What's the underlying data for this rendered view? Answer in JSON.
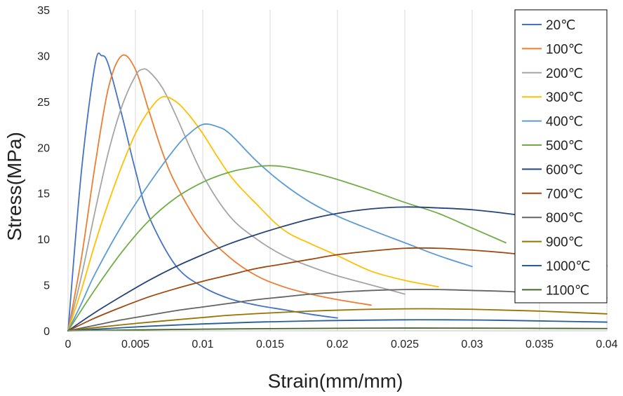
{
  "chart_data": {
    "type": "line",
    "title": "",
    "xlabel": "Strain(mm/mm)",
    "ylabel": "Stress(MPa)",
    "xlim": [
      0,
      0.04
    ],
    "ylim": [
      0,
      35
    ],
    "x_ticks": [
      0,
      0.005,
      0.01,
      0.015,
      0.02,
      0.025,
      0.03,
      0.035,
      0.04
    ],
    "x_tick_labels": [
      "0",
      "0.005",
      "0.01",
      "0.015",
      "0.02",
      "0.025",
      "0.03",
      "0.035",
      "0.04"
    ],
    "y_ticks": [
      0,
      5,
      10,
      15,
      20,
      25,
      30,
      35
    ],
    "y_tick_labels": [
      "0",
      "5",
      "10",
      "15",
      "20",
      "25",
      "30",
      "35"
    ],
    "grid": "vertical",
    "legend_position": "top-right",
    "series": [
      {
        "name": "20℃",
        "color": "#4472C4",
        "peak_strain": 0.0025,
        "peak_stress": 30.0,
        "points": [
          [
            0,
            0
          ],
          [
            0.001,
            17.5
          ],
          [
            0.002,
            29
          ],
          [
            0.0025,
            30
          ],
          [
            0.003,
            29
          ],
          [
            0.004,
            23.5
          ],
          [
            0.005,
            17.5
          ],
          [
            0.006,
            12.5
          ],
          [
            0.008,
            7.1
          ],
          [
            0.01,
            4.8
          ],
          [
            0.012,
            3.5
          ],
          [
            0.014,
            2.8
          ],
          [
            0.016,
            2.3
          ],
          [
            0.018,
            1.8
          ],
          [
            0.02,
            1.4
          ]
        ]
      },
      {
        "name": "100℃",
        "color": "#ED7D31",
        "peak_strain": 0.004,
        "peak_stress": 30.0,
        "points": [
          [
            0,
            0
          ],
          [
            0.001,
            8
          ],
          [
            0.002,
            18
          ],
          [
            0.003,
            26.5
          ],
          [
            0.004,
            30
          ],
          [
            0.005,
            28.5
          ],
          [
            0.006,
            24
          ],
          [
            0.007,
            19.5
          ],
          [
            0.008,
            16
          ],
          [
            0.01,
            11
          ],
          [
            0.012,
            8
          ],
          [
            0.014,
            6
          ],
          [
            0.016,
            4.8
          ],
          [
            0.018,
            4
          ],
          [
            0.02,
            3.4
          ],
          [
            0.0225,
            2.8
          ]
        ]
      },
      {
        "name": "200℃",
        "color": "#A5A5A5",
        "peak_strain": 0.0055,
        "peak_stress": 28.5,
        "points": [
          [
            0,
            0
          ],
          [
            0.001,
            6
          ],
          [
            0.002,
            13
          ],
          [
            0.003,
            19.5
          ],
          [
            0.004,
            24.5
          ],
          [
            0.005,
            27.8
          ],
          [
            0.0055,
            28.5
          ],
          [
            0.006,
            28.3
          ],
          [
            0.007,
            26.5
          ],
          [
            0.008,
            23.5
          ],
          [
            0.01,
            17
          ],
          [
            0.012,
            12.5
          ],
          [
            0.014,
            10
          ],
          [
            0.016,
            8.2
          ],
          [
            0.018,
            7
          ],
          [
            0.02,
            6
          ],
          [
            0.0225,
            5
          ],
          [
            0.025,
            4
          ]
        ]
      },
      {
        "name": "300℃",
        "color": "#FFC000",
        "peak_strain": 0.007,
        "peak_stress": 25.5,
        "points": [
          [
            0,
            0
          ],
          [
            0.001,
            4.5
          ],
          [
            0.002,
            9.5
          ],
          [
            0.003,
            14
          ],
          [
            0.004,
            18
          ],
          [
            0.005,
            21.5
          ],
          [
            0.006,
            24
          ],
          [
            0.007,
            25.5
          ],
          [
            0.008,
            25
          ],
          [
            0.009,
            23.5
          ],
          [
            0.01,
            21.5
          ],
          [
            0.012,
            17
          ],
          [
            0.014,
            13.8
          ],
          [
            0.016,
            11
          ],
          [
            0.018,
            9.5
          ],
          [
            0.02,
            8.2
          ],
          [
            0.0225,
            6.5
          ],
          [
            0.025,
            5.5
          ],
          [
            0.0275,
            4.8
          ]
        ]
      },
      {
        "name": "400℃",
        "color": "#5B9BD5",
        "peak_strain": 0.01,
        "peak_stress": 22.5,
        "points": [
          [
            0,
            0
          ],
          [
            0.001,
            3
          ],
          [
            0.002,
            6.2
          ],
          [
            0.004,
            11.5
          ],
          [
            0.006,
            16
          ],
          [
            0.008,
            20
          ],
          [
            0.009,
            21.5
          ],
          [
            0.01,
            22.5
          ],
          [
            0.011,
            22.3
          ],
          [
            0.012,
            21.5
          ],
          [
            0.014,
            18.5
          ],
          [
            0.016,
            16
          ],
          [
            0.018,
            14
          ],
          [
            0.02,
            12.5
          ],
          [
            0.0225,
            11
          ],
          [
            0.025,
            9.6
          ],
          [
            0.0275,
            8.2
          ],
          [
            0.03,
            7
          ]
        ]
      },
      {
        "name": "500℃",
        "color": "#70AD47",
        "peak_strain": 0.015,
        "peak_stress": 18.0,
        "points": [
          [
            0,
            0
          ],
          [
            0.002,
            4.5
          ],
          [
            0.004,
            8.6
          ],
          [
            0.006,
            12
          ],
          [
            0.008,
            14.5
          ],
          [
            0.01,
            16.2
          ],
          [
            0.012,
            17.3
          ],
          [
            0.014,
            17.9
          ],
          [
            0.015,
            18
          ],
          [
            0.016,
            17.9
          ],
          [
            0.018,
            17.3
          ],
          [
            0.02,
            16.5
          ],
          [
            0.0225,
            15.3
          ],
          [
            0.025,
            14
          ],
          [
            0.0275,
            12.8
          ],
          [
            0.03,
            11.2
          ],
          [
            0.0325,
            9.6
          ]
        ]
      },
      {
        "name": "600℃",
        "color": "#264478",
        "peak_strain": 0.025,
        "peak_stress": 13.5,
        "points": [
          [
            0,
            0
          ],
          [
            0.002,
            2
          ],
          [
            0.004,
            3.8
          ],
          [
            0.006,
            5.5
          ],
          [
            0.008,
            7
          ],
          [
            0.01,
            8.3
          ],
          [
            0.012,
            9.5
          ],
          [
            0.014,
            10.5
          ],
          [
            0.016,
            11.4
          ],
          [
            0.018,
            12.2
          ],
          [
            0.02,
            12.8
          ],
          [
            0.0225,
            13.3
          ],
          [
            0.025,
            13.5
          ],
          [
            0.0275,
            13.4
          ],
          [
            0.03,
            13.2
          ],
          [
            0.0325,
            12.8
          ],
          [
            0.035,
            12.3
          ],
          [
            0.0375,
            11.8
          ]
        ]
      },
      {
        "name": "700℃",
        "color": "#9E480E",
        "peak_strain": 0.0255,
        "peak_stress": 9.0,
        "points": [
          [
            0,
            0
          ],
          [
            0.002,
            1.4
          ],
          [
            0.004,
            2.6
          ],
          [
            0.006,
            3.7
          ],
          [
            0.008,
            4.6
          ],
          [
            0.01,
            5.4
          ],
          [
            0.012,
            6.1
          ],
          [
            0.014,
            6.8
          ],
          [
            0.016,
            7.3
          ],
          [
            0.018,
            7.8
          ],
          [
            0.02,
            8.3
          ],
          [
            0.0225,
            8.7
          ],
          [
            0.025,
            9
          ],
          [
            0.0275,
            9
          ],
          [
            0.03,
            8.8
          ],
          [
            0.0325,
            8.5
          ],
          [
            0.035,
            8.1
          ],
          [
            0.0375,
            7.6
          ],
          [
            0.04,
            7.1
          ]
        ]
      },
      {
        "name": "800℃",
        "color": "#636363",
        "peak_strain": 0.026,
        "peak_stress": 4.5,
        "points": [
          [
            0,
            0
          ],
          [
            0.002,
            0.6
          ],
          [
            0.004,
            1.2
          ],
          [
            0.006,
            1.7
          ],
          [
            0.008,
            2.2
          ],
          [
            0.01,
            2.6
          ],
          [
            0.012,
            3
          ],
          [
            0.014,
            3.4
          ],
          [
            0.016,
            3.7
          ],
          [
            0.018,
            4
          ],
          [
            0.02,
            4.2
          ],
          [
            0.0225,
            4.4
          ],
          [
            0.025,
            4.5
          ],
          [
            0.0275,
            4.5
          ],
          [
            0.03,
            4.4
          ],
          [
            0.0325,
            4.3
          ],
          [
            0.035,
            4.1
          ],
          [
            0.0375,
            3.9
          ],
          [
            0.04,
            3.6
          ]
        ]
      },
      {
        "name": "900℃",
        "color": "#997300",
        "peak_strain": 0.025,
        "peak_stress": 2.4,
        "points": [
          [
            0,
            0
          ],
          [
            0.002,
            0.35
          ],
          [
            0.005,
            0.8
          ],
          [
            0.008,
            1.2
          ],
          [
            0.01,
            1.45
          ],
          [
            0.012,
            1.7
          ],
          [
            0.015,
            1.95
          ],
          [
            0.018,
            2.15
          ],
          [
            0.02,
            2.25
          ],
          [
            0.0225,
            2.35
          ],
          [
            0.025,
            2.4
          ],
          [
            0.0275,
            2.4
          ],
          [
            0.03,
            2.35
          ],
          [
            0.0325,
            2.25
          ],
          [
            0.035,
            2.15
          ],
          [
            0.0375,
            2
          ],
          [
            0.04,
            1.85
          ]
        ]
      },
      {
        "name": "1000℃",
        "color": "#255E91",
        "peak_strain": 0.025,
        "peak_stress": 1.2,
        "points": [
          [
            0,
            0
          ],
          [
            0.003,
            0.25
          ],
          [
            0.006,
            0.5
          ],
          [
            0.01,
            0.75
          ],
          [
            0.014,
            0.95
          ],
          [
            0.018,
            1.08
          ],
          [
            0.022,
            1.16
          ],
          [
            0.025,
            1.2
          ],
          [
            0.028,
            1.2
          ],
          [
            0.032,
            1.15
          ],
          [
            0.036,
            1.05
          ],
          [
            0.04,
            0.95
          ]
        ]
      },
      {
        "name": "1100℃",
        "color": "#43682B",
        "peak_strain": 0.025,
        "peak_stress": 0.3,
        "points": [
          [
            0,
            0
          ],
          [
            0.005,
            0.1
          ],
          [
            0.01,
            0.18
          ],
          [
            0.015,
            0.24
          ],
          [
            0.02,
            0.28
          ],
          [
            0.025,
            0.3
          ],
          [
            0.03,
            0.29
          ],
          [
            0.035,
            0.27
          ],
          [
            0.04,
            0.25
          ]
        ]
      }
    ]
  }
}
